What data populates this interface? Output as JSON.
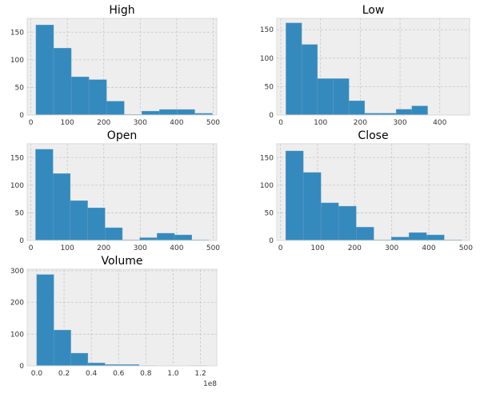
{
  "figure": {
    "bar_color": "#348abd",
    "bar_edge": "#6e9cc4",
    "background": "#eeeeee",
    "grid": true
  },
  "chart_data": [
    {
      "type": "bar",
      "title": "High",
      "xlim": [
        -10,
        510
      ],
      "ylim": [
        0,
        175
      ],
      "xticks": [
        0,
        100,
        200,
        300,
        400,
        500
      ],
      "yticks": [
        0,
        50,
        100,
        150
      ],
      "bin_edges": [
        14,
        62.4,
        110.8,
        159.2,
        207.6,
        256,
        304.4,
        352.8,
        401.2,
        449.6,
        498
      ],
      "values": [
        163,
        121,
        69,
        64,
        25,
        1,
        7,
        10,
        10,
        3
      ]
    },
    {
      "type": "bar",
      "title": "Low",
      "xlim": [
        -10,
        475
      ],
      "ylim": [
        0,
        170
      ],
      "xticks": [
        0,
        100,
        200,
        300,
        400
      ],
      "yticks": [
        0,
        50,
        100,
        150
      ],
      "bin_edges": [
        13,
        52.6,
        92.2,
        131.8,
        171.4,
        211,
        250.6,
        290.2,
        329.8,
        369.4,
        409
      ],
      "values": [
        162,
        124,
        64,
        64,
        25,
        3,
        3,
        10,
        16,
        0
      ]
    },
    {
      "type": "bar",
      "title": "Open",
      "xlim": [
        -10,
        510
      ],
      "ylim": [
        0,
        175
      ],
      "xticks": [
        0,
        100,
        200,
        300,
        400,
        500
      ],
      "yticks": [
        0,
        50,
        100,
        150
      ],
      "bin_edges": [
        13,
        60.6,
        108.2,
        155.8,
        203.4,
        251,
        298.6,
        346.2,
        393.8,
        441.4,
        489
      ],
      "values": [
        165,
        121,
        72,
        59,
        23,
        1,
        5,
        13,
        10,
        1
      ]
    },
    {
      "type": "bar",
      "title": "Close",
      "xlim": [
        -10,
        510
      ],
      "ylim": [
        0,
        175
      ],
      "xticks": [
        0,
        100,
        200,
        300,
        400,
        500
      ],
      "yticks": [
        0,
        50,
        100,
        150
      ],
      "bin_edges": [
        14,
        61.5,
        109,
        156.5,
        204,
        251.5,
        299,
        346.5,
        394,
        441.5,
        489
      ],
      "values": [
        162,
        123,
        68,
        62,
        24,
        1,
        6,
        14,
        10,
        1
      ]
    },
    {
      "type": "bar",
      "title": "Volume",
      "xlim": [
        -0.07,
        1.32
      ],
      "ylim": [
        0,
        305
      ],
      "xticks": [
        0,
        0.2,
        0.4,
        0.6,
        0.8,
        1.0,
        1.2
      ],
      "xtick_labels": [
        "0.0",
        "0.2",
        "0.4",
        "0.6",
        "0.8",
        "1.0",
        "1.2"
      ],
      "x_offset_label": "1e8",
      "yticks": [
        0,
        100,
        200,
        300
      ],
      "bin_edges": [
        0.0,
        0.125,
        0.25,
        0.375,
        0.5,
        0.625,
        0.75,
        0.875,
        1.0,
        1.125,
        1.25
      ],
      "values": [
        288,
        113,
        40,
        9,
        4,
        4,
        1,
        0,
        0,
        1
      ]
    }
  ]
}
